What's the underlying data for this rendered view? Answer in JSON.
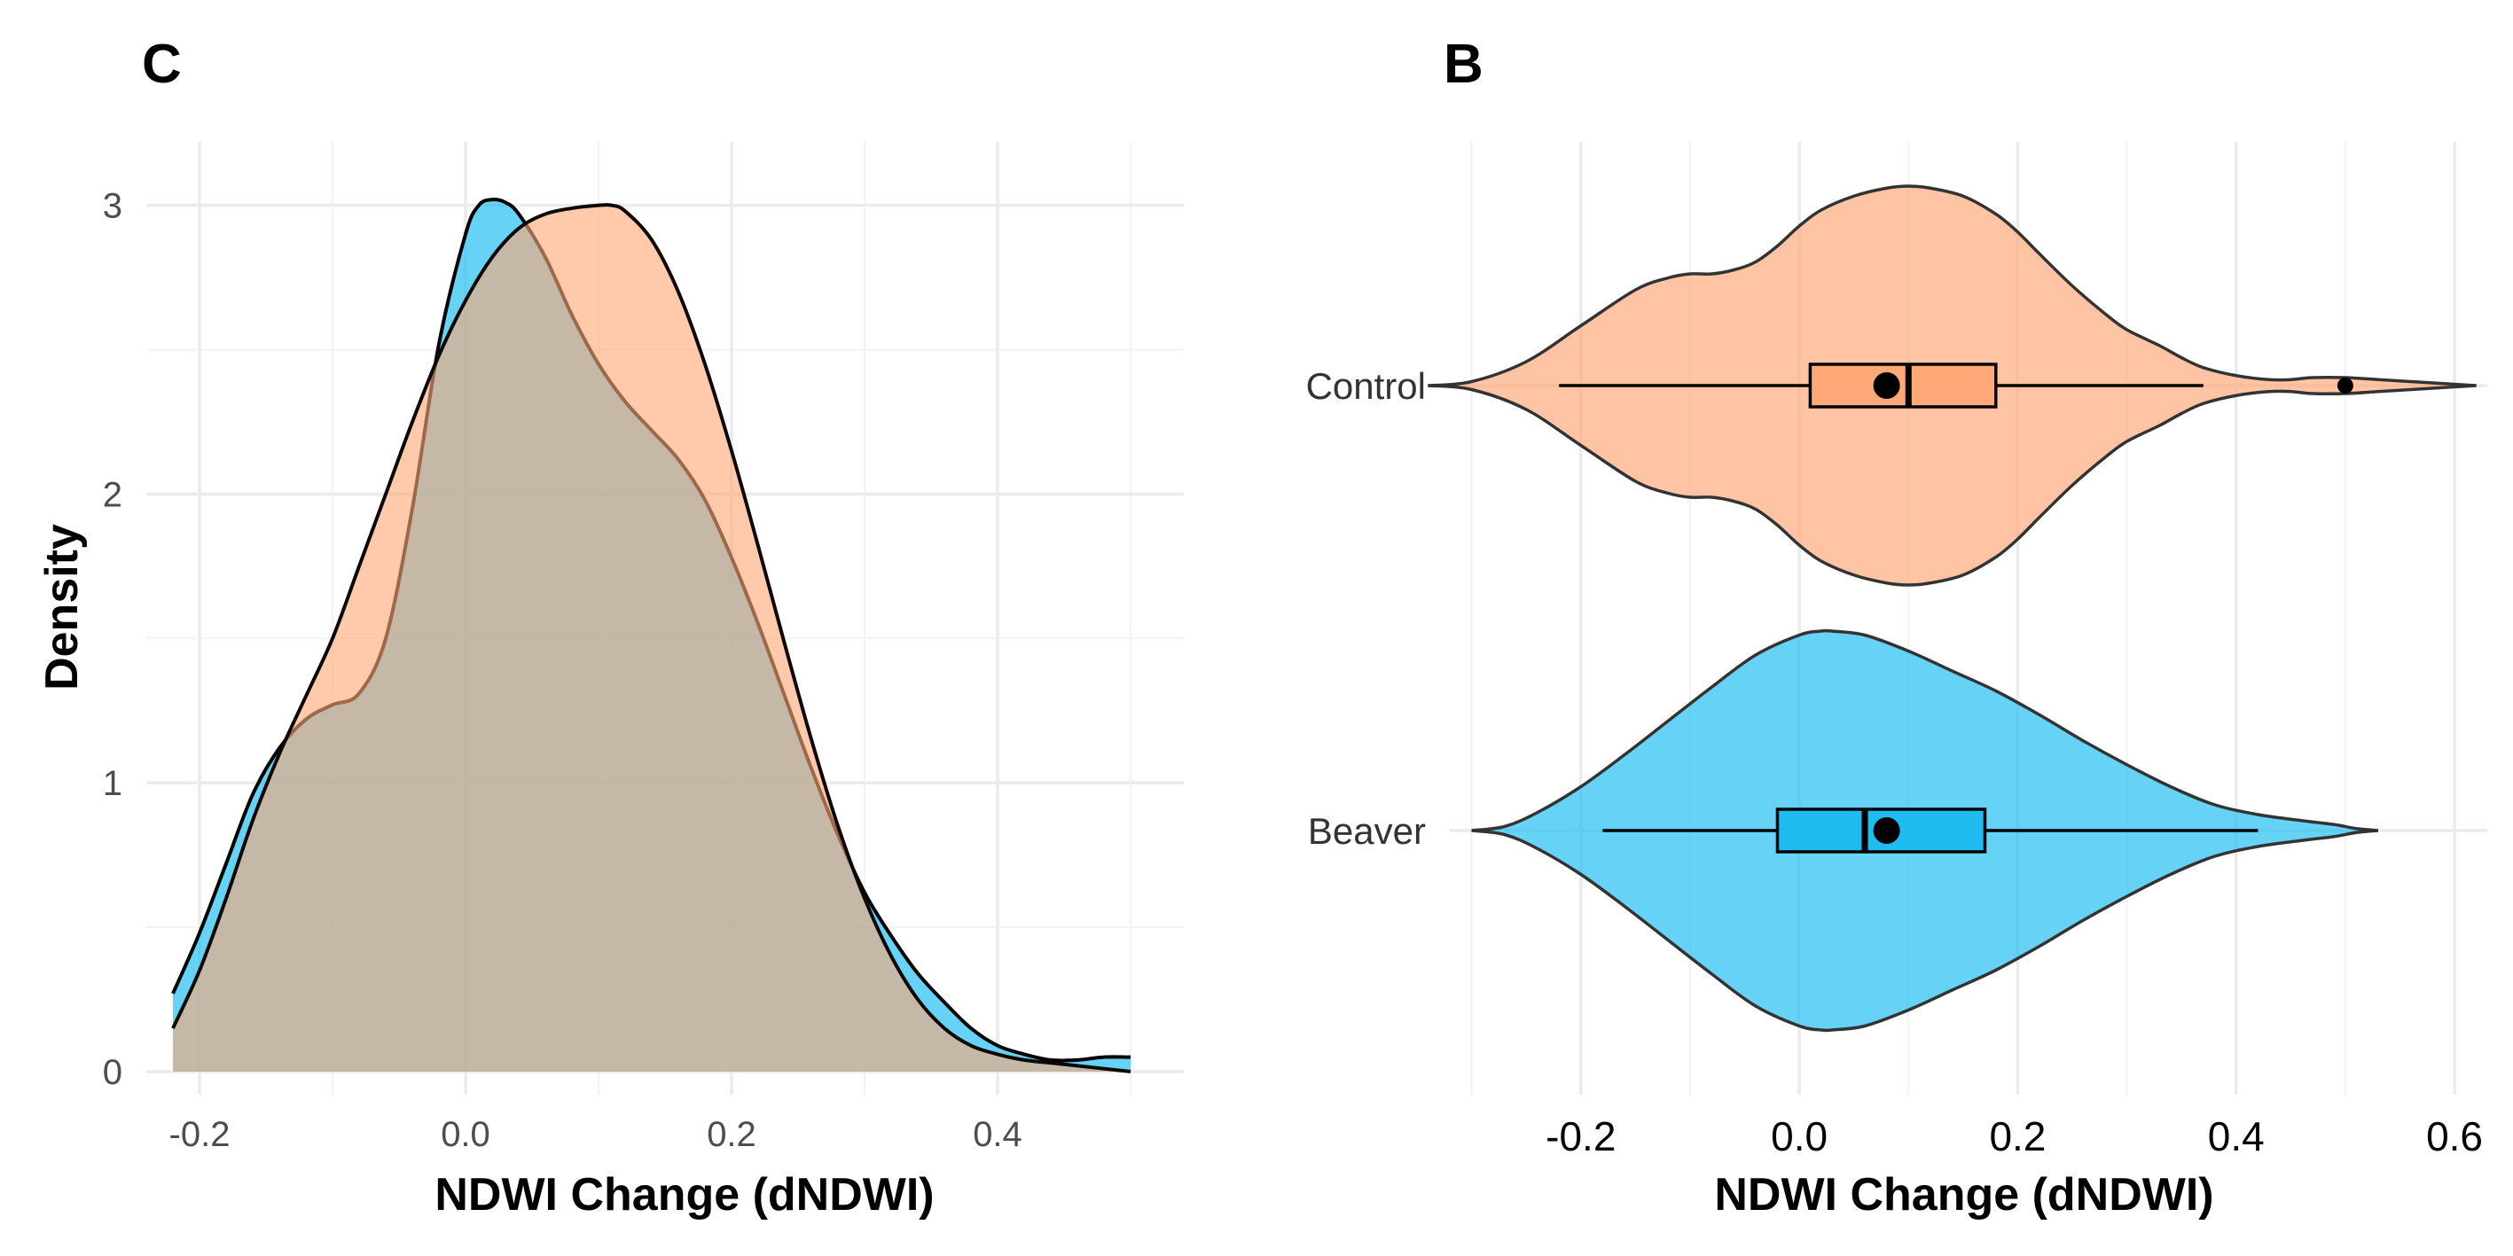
{
  "colors": {
    "beaver": "#1ebcf0",
    "control": "#ffa878",
    "overlap": "#c0b6a0",
    "outline": "#000000"
  },
  "chart_data": [
    {
      "type": "area",
      "panel_label": "C",
      "title": "",
      "xlabel": "NDWI Change (dNDWI)",
      "ylabel": "Density",
      "xlim": [
        -0.24,
        0.54
      ],
      "ylim": [
        -0.08,
        3.22
      ],
      "x_ticks": [
        -0.2,
        0.0,
        0.2,
        0.4
      ],
      "x_tick_labels": [
        "-0.2",
        "0.0",
        "0.2",
        "0.4"
      ],
      "y_ticks": [
        0,
        1,
        2,
        3
      ],
      "y_tick_labels": [
        "0",
        "1",
        "2",
        "3"
      ],
      "grid": true,
      "legend": "none",
      "series": [
        {
          "group": "control",
          "x": [
            -0.22,
            -0.2,
            -0.18,
            -0.16,
            -0.14,
            -0.12,
            -0.1,
            -0.08,
            -0.06,
            -0.04,
            -0.02,
            0.0,
            0.02,
            0.04,
            0.06,
            0.08,
            0.1,
            0.11,
            0.12,
            0.14,
            0.16,
            0.18,
            0.2,
            0.22,
            0.24,
            0.26,
            0.28,
            0.3,
            0.32,
            0.34,
            0.36,
            0.38,
            0.4,
            0.42,
            0.44,
            0.46,
            0.48,
            0.5
          ],
          "y": [
            0.15,
            0.35,
            0.6,
            0.87,
            1.1,
            1.3,
            1.5,
            1.75,
            2.0,
            2.25,
            2.48,
            2.67,
            2.82,
            2.92,
            2.97,
            2.99,
            3.0,
            3.0,
            2.98,
            2.88,
            2.7,
            2.45,
            2.15,
            1.82,
            1.48,
            1.15,
            0.85,
            0.6,
            0.4,
            0.25,
            0.15,
            0.09,
            0.06,
            0.04,
            0.03,
            0.02,
            0.01,
            0.0
          ]
        },
        {
          "group": "beaver",
          "x": [
            -0.22,
            -0.2,
            -0.18,
            -0.16,
            -0.14,
            -0.12,
            -0.1,
            -0.08,
            -0.06,
            -0.04,
            -0.02,
            0.0,
            0.01,
            0.02,
            0.03,
            0.04,
            0.06,
            0.08,
            0.1,
            0.12,
            0.14,
            0.16,
            0.18,
            0.2,
            0.22,
            0.24,
            0.26,
            0.28,
            0.3,
            0.32,
            0.34,
            0.36,
            0.38,
            0.4,
            0.42,
            0.44,
            0.46,
            0.48,
            0.5
          ],
          "y": [
            0.27,
            0.48,
            0.72,
            0.96,
            1.12,
            1.22,
            1.27,
            1.31,
            1.5,
            1.95,
            2.52,
            2.9,
            3.0,
            3.02,
            3.01,
            2.97,
            2.82,
            2.62,
            2.45,
            2.32,
            2.22,
            2.12,
            1.98,
            1.78,
            1.55,
            1.3,
            1.05,
            0.82,
            0.62,
            0.47,
            0.34,
            0.24,
            0.15,
            0.09,
            0.06,
            0.04,
            0.04,
            0.05,
            0.05
          ]
        }
      ]
    },
    {
      "type": "violin",
      "panel_label": "B",
      "title": "",
      "xlabel": "NDWI Change (dNDWI)",
      "ylabel": "",
      "xlim": [
        -0.32,
        0.63
      ],
      "x_ticks": [
        -0.2,
        0.0,
        0.2,
        0.4,
        0.6
      ],
      "x_tick_labels": [
        "-0.2",
        "0.0",
        "0.2",
        "0.4",
        "0.6"
      ],
      "categories": [
        "Control",
        "Beaver"
      ],
      "grid": true,
      "legend": "none",
      "groups": [
        {
          "name": "Control",
          "group": "control",
          "min": -0.22,
          "q1": 0.01,
          "median": 0.1,
          "q3": 0.18,
          "max": 0.37,
          "mean": 0.08,
          "outliers": [
            0.5
          ],
          "violin_x": [
            -0.34,
            -0.3,
            -0.25,
            -0.2,
            -0.15,
            -0.12,
            -0.1,
            -0.08,
            -0.06,
            -0.04,
            -0.02,
            0.0,
            0.02,
            0.05,
            0.08,
            0.1,
            0.12,
            0.15,
            0.18,
            0.2,
            0.22,
            0.25,
            0.28,
            0.3,
            0.33,
            0.35,
            0.37,
            0.4,
            0.43,
            0.45,
            0.47,
            0.5,
            0.53,
            0.56,
            0.59,
            0.62
          ],
          "violin_w": [
            0.0,
            0.02,
            0.12,
            0.3,
            0.48,
            0.54,
            0.56,
            0.56,
            0.58,
            0.62,
            0.7,
            0.8,
            0.88,
            0.95,
            0.99,
            1.0,
            0.99,
            0.95,
            0.86,
            0.77,
            0.66,
            0.5,
            0.36,
            0.28,
            0.2,
            0.14,
            0.09,
            0.05,
            0.03,
            0.03,
            0.04,
            0.04,
            0.03,
            0.02,
            0.01,
            0.0
          ]
        },
        {
          "name": "Beaver",
          "group": "beaver",
          "min": -0.18,
          "q1": -0.02,
          "median": 0.06,
          "q3": 0.17,
          "max": 0.42,
          "mean": 0.08,
          "outliers": [],
          "violin_x": [
            -0.3,
            -0.27,
            -0.24,
            -0.2,
            -0.16,
            -0.12,
            -0.08,
            -0.04,
            0.0,
            0.02,
            0.03,
            0.06,
            0.1,
            0.14,
            0.18,
            0.22,
            0.26,
            0.3,
            0.34,
            0.38,
            0.42,
            0.46,
            0.49,
            0.51,
            0.53
          ],
          "violin_w": [
            0.0,
            0.02,
            0.09,
            0.22,
            0.38,
            0.55,
            0.72,
            0.88,
            0.98,
            1.0,
            1.0,
            0.98,
            0.9,
            0.8,
            0.7,
            0.58,
            0.45,
            0.33,
            0.22,
            0.13,
            0.08,
            0.05,
            0.03,
            0.01,
            0.0
          ]
        }
      ]
    }
  ]
}
